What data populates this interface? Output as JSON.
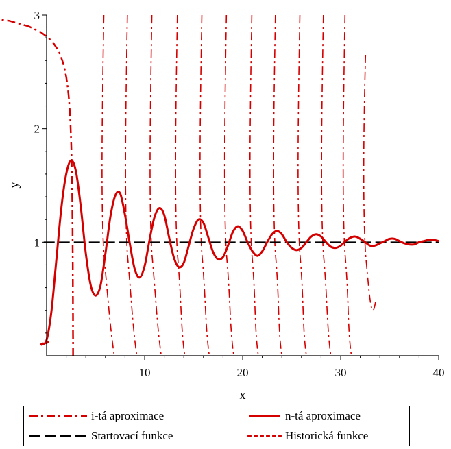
{
  "chart_data": {
    "type": "line",
    "title": "",
    "xlabel": "x",
    "ylabel": "y",
    "xlim": [
      -0.5,
      40
    ],
    "ylim": [
      0,
      3
    ],
    "x_ticks": [
      "10",
      "20",
      "30",
      "40"
    ],
    "y_ticks": [
      "1",
      "2",
      "3"
    ],
    "grid": false,
    "legend_position": "bottom",
    "series": [
      {
        "name": "i-tá aproximace",
        "style": "dashdot",
        "color": "#d40000"
      },
      {
        "name": "n-tá aproximace",
        "style": "solid",
        "color": "#d40000"
      },
      {
        "name": "Startovací funkce",
        "style": "dashed",
        "color": "#000000",
        "y": 1
      },
      {
        "name": "Historická funkce",
        "style": "dotted",
        "color": "#d40000"
      }
    ],
    "n_approximation": {
      "x": [
        -0.5,
        0,
        0.5,
        1,
        1.5,
        2,
        2.5,
        3,
        3.5,
        4,
        4.5,
        5,
        5.5,
        6,
        6.5,
        7,
        7.5,
        8,
        8.5,
        9,
        9.5,
        10,
        10.5,
        11,
        11.5,
        12,
        12.5,
        13,
        13.5,
        14,
        14.5,
        15,
        15.5,
        16,
        16.5,
        17,
        17.5,
        18,
        18.5,
        19,
        19.5,
        20,
        20.5,
        21,
        21.5,
        22,
        22.5,
        23,
        23.5,
        24,
        24.5,
        25,
        25.5,
        26,
        26.5,
        27,
        27.5,
        28,
        28.5,
        29,
        29.5,
        30,
        30.5,
        31,
        31.5,
        32,
        32.5,
        33,
        33.5,
        34,
        34.5,
        35,
        35.5,
        36,
        36.5,
        37,
        37.5,
        38,
        38.5,
        39,
        39.5,
        40
      ],
      "y": [
        0.1,
        0.14,
        0.4,
        0.85,
        1.3,
        1.6,
        1.72,
        1.62,
        1.3,
        0.9,
        0.62,
        0.53,
        0.62,
        0.9,
        1.22,
        1.41,
        1.43,
        1.24,
        0.98,
        0.76,
        0.69,
        0.79,
        1.02,
        1.22,
        1.3,
        1.24,
        1.04,
        0.86,
        0.78,
        0.82,
        0.97,
        1.12,
        1.2,
        1.17,
        1.04,
        0.91,
        0.85,
        0.87,
        0.97,
        1.09,
        1.14,
        1.1,
        1.0,
        0.92,
        0.88,
        0.92,
        1.0,
        1.07,
        1.1,
        1.07,
        1.0,
        0.95,
        0.93,
        0.95,
        1.0,
        1.05,
        1.07,
        1.05,
        1.0,
        0.96,
        0.95,
        0.97,
        1.01,
        1.04,
        1.05,
        1.03,
        1.0,
        0.97,
        0.97,
        0.99,
        1.01,
        1.03,
        1.03,
        1.01,
        0.99,
        0.98,
        0.98,
        1.0,
        1.01,
        1.02,
        1.02,
        1.01
      ]
    },
    "i_approximations": [
      {
        "blowup_x": 2.7,
        "floor_x": null
      },
      {
        "blowup_x": 5.7,
        "floor_x": 6.9
      },
      {
        "blowup_x": 8.1,
        "floor_x": 9.2
      },
      {
        "blowup_x": 10.6,
        "floor_x": 11.7
      },
      {
        "blowup_x": 13.2,
        "floor_x": 14.1
      },
      {
        "blowup_x": 15.7,
        "floor_x": 16.6
      },
      {
        "blowup_x": 18.2,
        "floor_x": 19.1
      },
      {
        "blowup_x": 20.8,
        "floor_x": 21.6
      },
      {
        "blowup_x": 23.2,
        "floor_x": 24.0
      },
      {
        "blowup_x": 25.7,
        "floor_x": 26.5
      },
      {
        "blowup_x": 28.1,
        "floor_x": 29.0
      },
      {
        "blowup_x": 30.3,
        "floor_x": 31.1
      },
      {
        "blowup_x": 32.4,
        "floor_x": 33.6
      }
    ]
  }
}
